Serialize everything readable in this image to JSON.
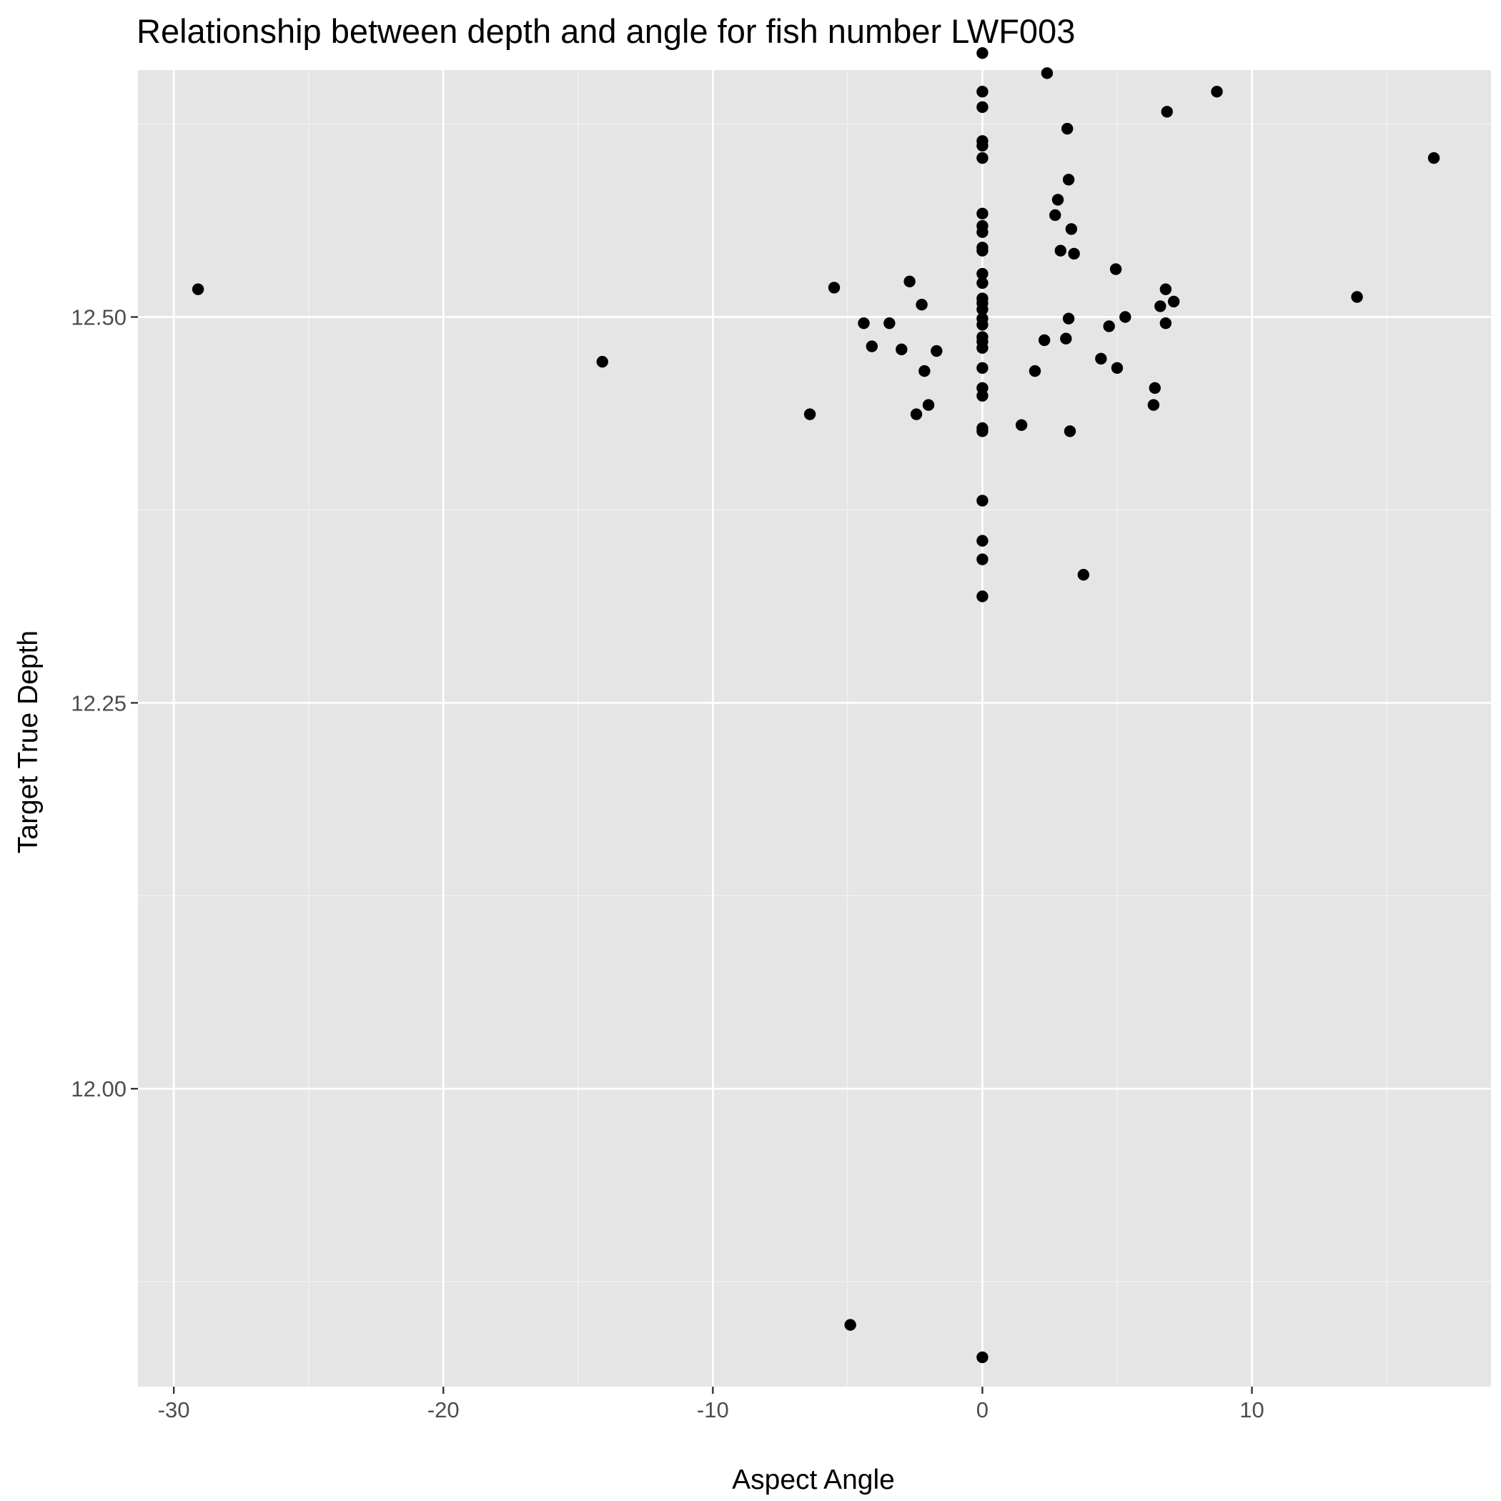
{
  "chart_data": {
    "type": "scatter",
    "title": "Relationship between depth and angle for fish number LWF003",
    "xlabel": "Aspect Angle",
    "ylabel": "Target True Depth",
    "xlim": [
      -31.33,
      18.87
    ],
    "ylim": [
      11.807,
      12.66
    ],
    "x_ticks": [
      -30,
      -20,
      -10,
      0,
      10
    ],
    "x_tick_labels": [
      "-30",
      "-20",
      "-10",
      "0",
      "10"
    ],
    "x_minor_ticks": [
      -25,
      -15,
      -5,
      5,
      15
    ],
    "y_ticks": [
      12.0,
      12.25,
      12.5
    ],
    "y_tick_labels": [
      "12.00",
      "12.25",
      "12.50"
    ],
    "y_minor_ticks": [
      11.875,
      12.125,
      12.375,
      12.625
    ],
    "grid": true,
    "legend": "none",
    "colors": {
      "panel_background": "#e5e5e5",
      "grid_major": "#ffffff",
      "grid_minor": "#f2f2f2",
      "point": "#000000",
      "tick_label": "#4d4d4d",
      "tick_mark": "#333333"
    },
    "points": [
      {
        "x": 0,
        "y": 12.671
      },
      {
        "x": 0,
        "y": 12.646
      },
      {
        "x": 0,
        "y": 12.636
      },
      {
        "x": 0,
        "y": 12.614
      },
      {
        "x": 0,
        "y": 12.611
      },
      {
        "x": 0,
        "y": 12.603
      },
      {
        "x": 0,
        "y": 12.567
      },
      {
        "x": 0,
        "y": 12.559
      },
      {
        "x": 0,
        "y": 12.555
      },
      {
        "x": 0,
        "y": 12.545
      },
      {
        "x": 0,
        "y": 12.543
      },
      {
        "x": 0,
        "y": 12.528
      },
      {
        "x": 0,
        "y": 12.522
      },
      {
        "x": 0,
        "y": 12.512
      },
      {
        "x": 0,
        "y": 12.509
      },
      {
        "x": 0,
        "y": 12.505
      },
      {
        "x": 0,
        "y": 12.499
      },
      {
        "x": 0,
        "y": 12.495
      },
      {
        "x": 0,
        "y": 12.487
      },
      {
        "x": 0,
        "y": 12.484
      },
      {
        "x": 0,
        "y": 12.48
      },
      {
        "x": 0,
        "y": 12.467
      },
      {
        "x": 0,
        "y": 12.454
      },
      {
        "x": 0,
        "y": 12.449
      },
      {
        "x": 0,
        "y": 12.428
      },
      {
        "x": 0,
        "y": 12.426
      },
      {
        "x": 0,
        "y": 12.381
      },
      {
        "x": 0,
        "y": 12.355
      },
      {
        "x": 0,
        "y": 12.343
      },
      {
        "x": 0,
        "y": 12.319
      },
      {
        "x": 0,
        "y": 11.826
      },
      {
        "x": -29.1,
        "y": 12.518
      },
      {
        "x": -14.1,
        "y": 12.471
      },
      {
        "x": -6.4,
        "y": 12.437
      },
      {
        "x": -5.5,
        "y": 12.519
      },
      {
        "x": -4.9,
        "y": 11.847
      },
      {
        "x": -4.4,
        "y": 12.496
      },
      {
        "x": -4.1,
        "y": 12.481
      },
      {
        "x": -3.45,
        "y": 12.496
      },
      {
        "x": -3.0,
        "y": 12.479
      },
      {
        "x": -2.7,
        "y": 12.523
      },
      {
        "x": -2.45,
        "y": 12.437
      },
      {
        "x": -2.25,
        "y": 12.508
      },
      {
        "x": -2.15,
        "y": 12.465
      },
      {
        "x": -2.0,
        "y": 12.443
      },
      {
        "x": -1.7,
        "y": 12.478
      },
      {
        "x": 1.45,
        "y": 12.43
      },
      {
        "x": 1.95,
        "y": 12.465
      },
      {
        "x": 2.3,
        "y": 12.485
      },
      {
        "x": 2.4,
        "y": 12.658
      },
      {
        "x": 2.7,
        "y": 12.566
      },
      {
        "x": 2.8,
        "y": 12.576
      },
      {
        "x": 2.9,
        "y": 12.543
      },
      {
        "x": 3.1,
        "y": 12.486
      },
      {
        "x": 3.15,
        "y": 12.622
      },
      {
        "x": 3.2,
        "y": 12.589
      },
      {
        "x": 3.2,
        "y": 12.499
      },
      {
        "x": 3.25,
        "y": 12.426
      },
      {
        "x": 3.3,
        "y": 12.557
      },
      {
        "x": 3.4,
        "y": 12.541
      },
      {
        "x": 3.75,
        "y": 12.333
      },
      {
        "x": 4.4,
        "y": 12.473
      },
      {
        "x": 4.7,
        "y": 12.494
      },
      {
        "x": 4.95,
        "y": 12.531
      },
      {
        "x": 5.0,
        "y": 12.467
      },
      {
        "x": 5.3,
        "y": 12.5
      },
      {
        "x": 6.35,
        "y": 12.443
      },
      {
        "x": 6.4,
        "y": 12.454
      },
      {
        "x": 6.6,
        "y": 12.507
      },
      {
        "x": 6.8,
        "y": 12.518
      },
      {
        "x": 6.8,
        "y": 12.496
      },
      {
        "x": 6.85,
        "y": 12.633
      },
      {
        "x": 7.1,
        "y": 12.51
      },
      {
        "x": 8.7,
        "y": 12.646
      },
      {
        "x": 13.9,
        "y": 12.513
      },
      {
        "x": 16.75,
        "y": 12.603
      }
    ]
  }
}
